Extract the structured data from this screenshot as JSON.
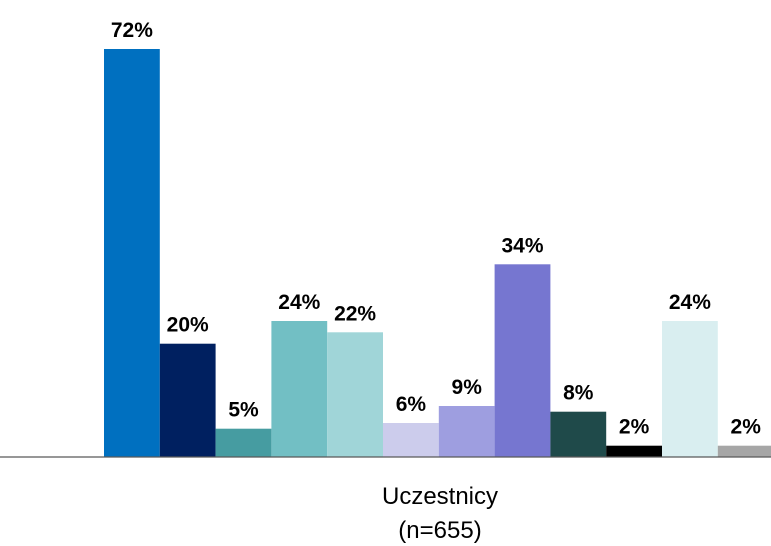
{
  "chart_data": {
    "type": "bar",
    "categories": [
      "Uczestnicy\n(n=655)"
    ],
    "category_label_line1": "Uczestnicy",
    "category_label_line2": "(n=655)",
    "ylim": [
      0,
      72
    ],
    "grid": false,
    "legend": "none",
    "series": [
      {
        "value": 72,
        "label": "72%",
        "color": "#0070C0"
      },
      {
        "value": 20,
        "label": "20%",
        "color": "#002060"
      },
      {
        "value": 5,
        "label": "5%",
        "color": "#469CA1"
      },
      {
        "value": 24,
        "label": "24%",
        "color": "#72BFC4"
      },
      {
        "value": 22,
        "label": "22%",
        "color": "#A0D5D8"
      },
      {
        "value": 6,
        "label": "6%",
        "color": "#CCCCEC"
      },
      {
        "value": 9,
        "label": "9%",
        "color": "#9E9EE0"
      },
      {
        "value": 34,
        "label": "34%",
        "color": "#7676D0"
      },
      {
        "value": 8,
        "label": "8%",
        "color": "#1F4A4A"
      },
      {
        "value": 2,
        "label": "2%",
        "color": "#000000"
      },
      {
        "value": 24,
        "label": "24%",
        "color": "#D9EEF0"
      },
      {
        "value": 2,
        "label": "2%",
        "color": "#A6A6A6"
      }
    ]
  }
}
